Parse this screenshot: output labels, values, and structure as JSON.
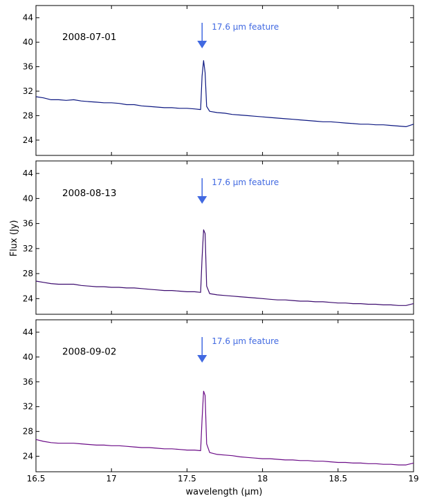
{
  "chart_data": {
    "type": "line",
    "xlabel": "wavelength (μm)",
    "ylabel": "Flux (Jy)",
    "xlim": [
      16.5,
      19.0
    ],
    "ylim": [
      21.5,
      46.0
    ],
    "xticks": [
      16.5,
      17,
      17.5,
      18,
      18.5,
      19
    ],
    "xtick_labels": [
      "16.5",
      "17",
      "17.5",
      "18",
      "18.5",
      "19"
    ],
    "yticks": [
      24,
      28,
      32,
      36,
      40,
      44
    ],
    "ytick_labels": [
      "24",
      "28",
      "32",
      "36",
      "40",
      "44"
    ],
    "shared_x": true,
    "grid": false,
    "annotation": {
      "text": "17.6 μm feature",
      "x": 17.6,
      "arrow_color": "#4169e1"
    },
    "panels": [
      {
        "label": "2008-07-01",
        "color": "#0b1680",
        "series": [
          {
            "x": [
              16.5,
              16.55,
              16.6,
              16.65,
              16.7,
              16.75,
              16.8,
              16.85,
              16.9,
              16.95,
              17.0,
              17.05,
              17.1,
              17.15,
              17.2,
              17.25,
              17.3,
              17.35,
              17.4,
              17.45,
              17.5,
              17.55,
              17.59,
              17.6,
              17.61,
              17.62,
              17.63,
              17.65,
              17.7,
              17.75,
              17.8,
              17.85,
              17.9,
              17.95,
              18.0,
              18.05,
              18.1,
              18.15,
              18.2,
              18.25,
              18.3,
              18.35,
              18.4,
              18.45,
              18.5,
              18.55,
              18.6,
              18.65,
              18.7,
              18.75,
              18.8,
              18.85,
              18.9,
              18.95,
              19.0
            ],
            "y": [
              31.1,
              30.9,
              30.6,
              30.6,
              30.5,
              30.6,
              30.4,
              30.3,
              30.2,
              30.1,
              30.1,
              30.0,
              29.8,
              29.8,
              29.6,
              29.5,
              29.4,
              29.3,
              29.3,
              29.2,
              29.2,
              29.1,
              29.0,
              34.5,
              37.0,
              35.0,
              29.5,
              28.7,
              28.5,
              28.4,
              28.2,
              28.1,
              28.0,
              27.9,
              27.8,
              27.7,
              27.6,
              27.5,
              27.4,
              27.3,
              27.2,
              27.1,
              27.0,
              27.0,
              26.9,
              26.8,
              26.7,
              26.6,
              26.6,
              26.5,
              26.5,
              26.4,
              26.3,
              26.2,
              26.6
            ]
          }
        ]
      },
      {
        "label": "2008-08-13",
        "color": "#3b0a6e",
        "series": [
          {
            "x": [
              16.5,
              16.55,
              16.6,
              16.65,
              16.7,
              16.75,
              16.8,
              16.85,
              16.9,
              16.95,
              17.0,
              17.05,
              17.1,
              17.15,
              17.2,
              17.25,
              17.3,
              17.35,
              17.4,
              17.45,
              17.5,
              17.55,
              17.59,
              17.6,
              17.61,
              17.62,
              17.63,
              17.65,
              17.7,
              17.75,
              17.8,
              17.85,
              17.9,
              17.95,
              18.0,
              18.05,
              18.1,
              18.15,
              18.2,
              18.25,
              18.3,
              18.35,
              18.4,
              18.45,
              18.5,
              18.55,
              18.6,
              18.65,
              18.7,
              18.75,
              18.8,
              18.85,
              18.9,
              18.95,
              19.0
            ],
            "y": [
              26.8,
              26.6,
              26.4,
              26.3,
              26.3,
              26.3,
              26.1,
              26.0,
              25.9,
              25.9,
              25.8,
              25.8,
              25.7,
              25.7,
              25.6,
              25.5,
              25.4,
              25.3,
              25.3,
              25.2,
              25.1,
              25.1,
              25.0,
              30.5,
              35.0,
              34.4,
              26.0,
              24.8,
              24.6,
              24.5,
              24.4,
              24.3,
              24.2,
              24.1,
              24.0,
              23.9,
              23.8,
              23.8,
              23.7,
              23.6,
              23.6,
              23.5,
              23.5,
              23.4,
              23.3,
              23.3,
              23.2,
              23.2,
              23.1,
              23.1,
              23.0,
              23.0,
              22.9,
              22.9,
              23.2
            ]
          }
        ]
      },
      {
        "label": "2008-09-02",
        "color": "#6a0a86",
        "series": [
          {
            "x": [
              16.5,
              16.55,
              16.6,
              16.65,
              16.7,
              16.75,
              16.8,
              16.85,
              16.9,
              16.95,
              17.0,
              17.05,
              17.1,
              17.15,
              17.2,
              17.25,
              17.3,
              17.35,
              17.4,
              17.45,
              17.5,
              17.55,
              17.59,
              17.6,
              17.61,
              17.62,
              17.63,
              17.65,
              17.7,
              17.75,
              17.8,
              17.85,
              17.9,
              17.95,
              18.0,
              18.05,
              18.1,
              18.15,
              18.2,
              18.25,
              18.3,
              18.35,
              18.4,
              18.45,
              18.5,
              18.55,
              18.6,
              18.65,
              18.7,
              18.75,
              18.8,
              18.85,
              18.9,
              18.95,
              19.0
            ],
            "y": [
              26.7,
              26.4,
              26.2,
              26.1,
              26.1,
              26.1,
              26.0,
              25.9,
              25.8,
              25.8,
              25.7,
              25.7,
              25.6,
              25.5,
              25.4,
              25.4,
              25.3,
              25.2,
              25.2,
              25.1,
              25.0,
              25.0,
              24.9,
              30.0,
              34.5,
              33.8,
              26.0,
              24.6,
              24.3,
              24.2,
              24.1,
              23.9,
              23.8,
              23.7,
              23.6,
              23.6,
              23.5,
              23.4,
              23.4,
              23.3,
              23.3,
              23.2,
              23.2,
              23.1,
              23.0,
              23.0,
              22.9,
              22.9,
              22.8,
              22.8,
              22.7,
              22.7,
              22.6,
              22.6,
              22.9
            ]
          }
        ]
      }
    ]
  }
}
